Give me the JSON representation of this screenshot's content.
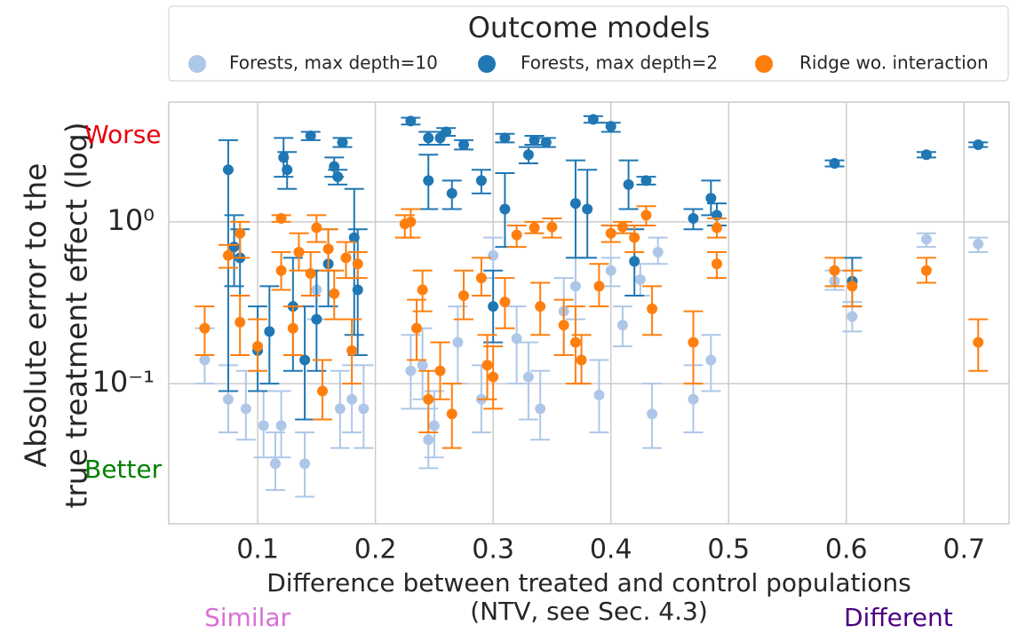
{
  "chart_data": {
    "type": "scatter",
    "legend_title": "Outcome models",
    "legend_loc": "upper center outside",
    "y_label": [
      "Absolute error to the",
      "true treatment effect (log)"
    ],
    "x_label": [
      "Difference between treated and control populations",
      "(NTV, see Sec. 4.3)"
    ],
    "annotations": [
      {
        "text": "Worse",
        "color": "#e8000b",
        "side": "y-top"
      },
      {
        "text": "Better",
        "color": "#008000",
        "side": "y-bottom"
      },
      {
        "text": "Similar",
        "color": "#da70d6",
        "side": "x-left"
      },
      {
        "text": "Different",
        "color": "#4b0082",
        "side": "x-right"
      }
    ],
    "log_y": true,
    "grid": true,
    "xlim": [
      0.0245,
      0.739
    ],
    "ylim": [
      0.0136,
      5.5
    ],
    "xticks": [
      0.1,
      0.2,
      0.3,
      0.4,
      0.5,
      0.6,
      0.7
    ],
    "yticks": [
      {
        "value": 1,
        "label": "10⁰"
      },
      {
        "value": 0.1,
        "label": "10⁻¹"
      }
    ],
    "series": [
      {
        "name": "Forests, max depth=10",
        "color": "#aec7e8",
        "x": [
          0.055,
          0.075,
          0.09,
          0.105,
          0.115,
          0.12,
          0.14,
          0.15,
          0.17,
          0.18,
          0.19,
          0.23,
          0.24,
          0.245,
          0.25,
          0.27,
          0.29,
          0.3,
          0.32,
          0.33,
          0.34,
          0.36,
          0.37,
          0.39,
          0.4,
          0.41,
          0.425,
          0.435,
          0.44,
          0.47,
          0.485,
          0.59,
          0.605,
          0.668,
          0.712
        ],
        "values": [
          0.14,
          0.08,
          0.07,
          0.055,
          0.032,
          0.055,
          0.032,
          0.38,
          0.07,
          0.08,
          0.07,
          0.12,
          0.13,
          0.045,
          0.055,
          0.18,
          0.08,
          0.62,
          0.19,
          0.11,
          0.07,
          0.28,
          0.4,
          0.085,
          0.5,
          0.23,
          0.44,
          0.065,
          0.65,
          0.08,
          0.14,
          0.43,
          0.26,
          0.78,
          0.73
        ],
        "low": [
          0.1,
          0.05,
          0.045,
          0.035,
          0.022,
          0.035,
          0.02,
          0.25,
          0.04,
          0.05,
          0.04,
          0.07,
          0.08,
          0.03,
          0.035,
          0.1,
          0.05,
          0.45,
          0.1,
          0.06,
          0.045,
          0.15,
          0.25,
          0.05,
          0.4,
          0.17,
          0.35,
          0.04,
          0.55,
          0.05,
          0.09,
          0.38,
          0.21,
          0.7,
          0.65
        ],
        "high": [
          0.22,
          0.13,
          0.12,
          0.09,
          0.05,
          0.09,
          0.05,
          0.5,
          0.12,
          0.13,
          0.13,
          0.2,
          0.22,
          0.07,
          0.09,
          0.3,
          0.13,
          0.8,
          0.3,
          0.18,
          0.12,
          0.45,
          0.6,
          0.14,
          0.6,
          0.3,
          0.55,
          0.1,
          0.8,
          0.13,
          0.2,
          0.5,
          0.32,
          0.85,
          0.8
        ]
      },
      {
        "name": "Forests, max depth=2",
        "color": "#1f77b4",
        "x": [
          0.075,
          0.08,
          0.085,
          0.1,
          0.11,
          0.122,
          0.125,
          0.13,
          0.14,
          0.145,
          0.15,
          0.16,
          0.165,
          0.168,
          0.172,
          0.182,
          0.185,
          0.23,
          0.245,
          0.245,
          0.255,
          0.26,
          0.265,
          0.275,
          0.29,
          0.3,
          0.31,
          0.31,
          0.33,
          0.335,
          0.345,
          0.37,
          0.38,
          0.385,
          0.4,
          0.415,
          0.42,
          0.43,
          0.47,
          0.485,
          0.49,
          0.59,
          0.605,
          0.668,
          0.712
        ],
        "values": [
          2.1,
          0.7,
          0.6,
          0.16,
          0.21,
          2.5,
          2.1,
          0.3,
          0.14,
          3.4,
          0.25,
          0.55,
          2.2,
          1.9,
          3.1,
          0.8,
          0.38,
          4.2,
          3.3,
          1.8,
          3.3,
          3.6,
          1.5,
          3.0,
          1.8,
          0.3,
          3.3,
          1.2,
          2.6,
          3.2,
          3.1,
          1.3,
          1.2,
          4.3,
          3.9,
          1.7,
          0.57,
          1.8,
          1.05,
          1.4,
          1.1,
          2.3,
          0.43,
          2.6,
          3.0
        ],
        "low": [
          0.09,
          0.4,
          0.35,
          0.09,
          0.1,
          1.9,
          1.6,
          0.12,
          0.06,
          3.2,
          0.12,
          0.3,
          1.9,
          1.7,
          2.9,
          0.2,
          0.15,
          4.0,
          3.0,
          1.2,
          3.0,
          3.4,
          1.2,
          2.8,
          1.5,
          0.18,
          3.1,
          0.7,
          2.3,
          3.0,
          2.9,
          0.6,
          0.6,
          4.1,
          3.6,
          1.2,
          0.35,
          1.7,
          0.9,
          1.1,
          0.95,
          2.2,
          0.3,
          2.5,
          2.9
        ],
        "high": [
          3.2,
          1.1,
          0.9,
          0.3,
          0.4,
          3.3,
          2.7,
          0.6,
          0.3,
          3.6,
          0.5,
          0.9,
          2.5,
          2.1,
          3.3,
          1.6,
          0.9,
          4.4,
          3.6,
          2.6,
          3.6,
          3.8,
          1.8,
          3.2,
          2.1,
          0.5,
          3.5,
          2.0,
          2.9,
          3.4,
          3.3,
          2.4,
          2.1,
          4.5,
          4.1,
          2.4,
          0.9,
          1.9,
          1.2,
          1.8,
          1.3,
          2.4,
          0.6,
          2.7,
          3.1
        ]
      },
      {
        "name": "Ridge wo. interaction",
        "color": "#ff7f0e",
        "x": [
          0.055,
          0.075,
          0.085,
          0.085,
          0.1,
          0.12,
          0.12,
          0.13,
          0.135,
          0.145,
          0.15,
          0.155,
          0.16,
          0.165,
          0.175,
          0.185,
          0.18,
          0.225,
          0.23,
          0.235,
          0.24,
          0.245,
          0.255,
          0.265,
          0.275,
          0.29,
          0.295,
          0.3,
          0.31,
          0.32,
          0.335,
          0.34,
          0.35,
          0.36,
          0.37,
          0.375,
          0.39,
          0.4,
          0.41,
          0.42,
          0.43,
          0.435,
          0.47,
          0.49,
          0.49,
          0.59,
          0.605,
          0.668,
          0.712
        ],
        "values": [
          0.22,
          0.62,
          0.85,
          0.24,
          0.17,
          0.5,
          1.05,
          0.22,
          0.65,
          0.48,
          0.92,
          0.09,
          0.68,
          0.36,
          0.6,
          0.55,
          0.16,
          0.97,
          1.0,
          0.22,
          0.38,
          0.08,
          0.12,
          0.065,
          0.35,
          0.45,
          0.13,
          0.11,
          0.32,
          0.83,
          0.92,
          0.3,
          0.93,
          0.23,
          0.18,
          0.14,
          0.4,
          0.85,
          0.93,
          0.8,
          1.1,
          0.29,
          0.18,
          0.55,
          0.92,
          0.5,
          0.4,
          0.5,
          0.18
        ],
        "low": [
          0.15,
          0.52,
          0.6,
          0.15,
          0.12,
          0.38,
          1.0,
          0.15,
          0.5,
          0.35,
          0.75,
          0.06,
          0.5,
          0.25,
          0.45,
          0.45,
          0.1,
          0.8,
          0.8,
          0.14,
          0.28,
          0.05,
          0.08,
          0.04,
          0.25,
          0.35,
          0.08,
          0.07,
          0.22,
          0.7,
          0.85,
          0.2,
          0.8,
          0.15,
          0.1,
          0.1,
          0.3,
          0.75,
          0.85,
          0.65,
          0.95,
          0.2,
          0.1,
          0.45,
          0.8,
          0.4,
          0.3,
          0.42,
          0.12
        ],
        "high": [
          0.3,
          0.72,
          1.0,
          0.35,
          0.25,
          0.65,
          1.1,
          0.3,
          0.85,
          0.65,
          1.1,
          0.14,
          0.9,
          0.5,
          0.75,
          0.65,
          0.25,
          1.1,
          1.2,
          0.33,
          0.5,
          0.12,
          0.18,
          0.1,
          0.5,
          0.6,
          0.2,
          0.17,
          0.45,
          0.95,
          1.0,
          0.42,
          1.05,
          0.33,
          0.3,
          0.2,
          0.55,
          0.95,
          1.0,
          0.95,
          1.25,
          0.4,
          0.28,
          0.65,
          1.05,
          0.6,
          0.5,
          0.6,
          0.25
        ]
      }
    ]
  }
}
